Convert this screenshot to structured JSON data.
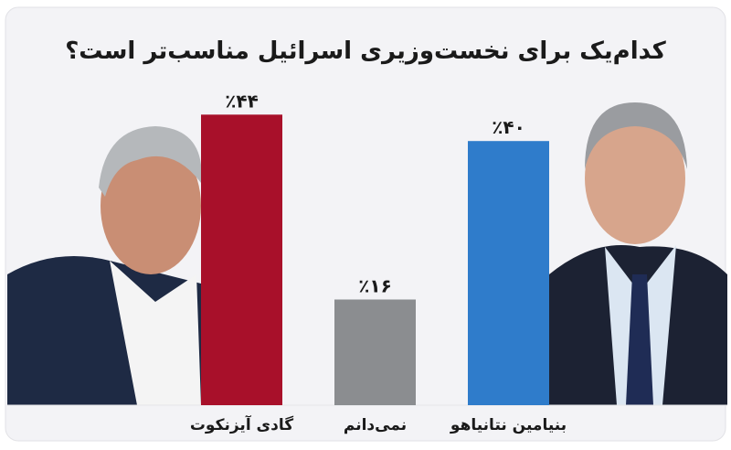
{
  "chart_data": {
    "type": "bar",
    "title": "کدام‌یک برای نخست‌وزیری اسرائیل مناسب‌تر است؟",
    "categories": [
      "گادی آیزنکوت",
      "نمی‌دانم",
      "بنیامین نتانیاهو"
    ],
    "values": [
      44,
      16,
      40
    ],
    "value_labels": [
      "٪۴۴",
      "٪۱۶",
      "٪۴۰"
    ],
    "colors": [
      "#a8102a",
      "#8b8d90",
      "#2f7ccb"
    ]
  }
}
